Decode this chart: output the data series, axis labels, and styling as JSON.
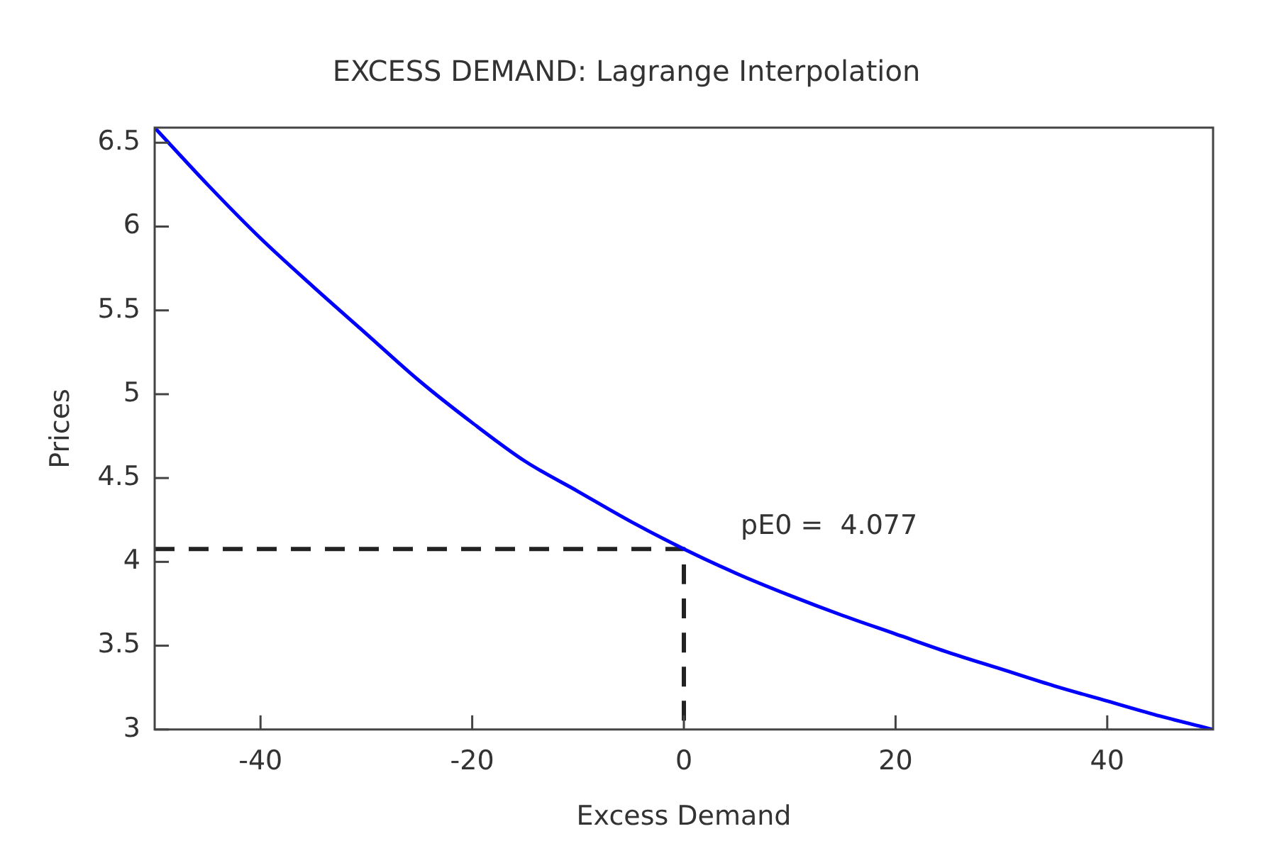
{
  "chart_data": {
    "type": "line",
    "title": "EXCESS DEMAND: Lagrange Interpolation",
    "xlabel": "Excess Demand",
    "ylabel": "Prices",
    "xlim": [
      -50,
      50
    ],
    "xticks": [
      -40,
      -20,
      0,
      20,
      40
    ],
    "ylim": [
      3,
      6.59
    ],
    "yticks": [
      3,
      3.5,
      4,
      4.5,
      5,
      5.5,
      6,
      6.5
    ],
    "grid": false,
    "legend": false,
    "marker": "none",
    "series": [
      {
        "color": "#0000ff",
        "line_style": "solid",
        "x": [
          -50,
          -45,
          -40,
          -35,
          -30,
          -25,
          -20,
          -15,
          -10,
          -5,
          0,
          5,
          10,
          15,
          20,
          25,
          30,
          35,
          40,
          45,
          50
        ],
        "values": [
          6.59,
          6.25,
          5.93,
          5.64,
          5.36,
          5.08,
          4.83,
          4.6,
          4.42,
          4.24,
          4.077,
          3.93,
          3.8,
          3.68,
          3.57,
          3.46,
          3.36,
          3.26,
          3.17,
          3.08,
          3.0
        ]
      },
      {
        "color": "#222222",
        "line_style": "dashed",
        "x": [
          -50,
          0,
          0
        ],
        "values": [
          4.077,
          4.077,
          3
        ]
      }
    ],
    "annotations": [
      {
        "text": "pE0 =  4.077",
        "x": 0,
        "y": 4.077
      }
    ]
  }
}
